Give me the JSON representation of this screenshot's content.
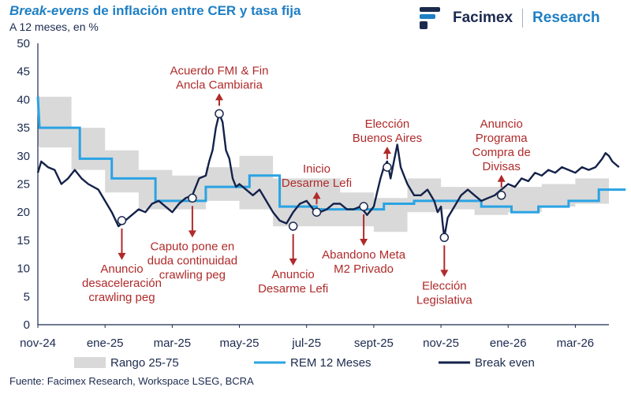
{
  "header": {
    "title_italic": "Break-evens",
    "title_rest": " de inflación entre CER y tasa fija",
    "subtitle": "A 12 meses, en %"
  },
  "logo": {
    "name": "Facimex",
    "research": "Research"
  },
  "source": "Fuente: Facimex Research, Workspace LSEG, BCRA",
  "colors": {
    "band": "#d9d9d9",
    "rem": "#2aa3e3",
    "break_even": "#14224a",
    "annotation": "#b02a2a",
    "axis": "#1b2a4e"
  },
  "chart_data": {
    "type": "line",
    "title": "Break-evens de inflación entre CER y tasa fija",
    "subtitle": "A 12 meses, en %",
    "xlabel": "",
    "ylabel": "",
    "ylim": [
      0,
      50
    ],
    "xlim": [
      0,
      17
    ],
    "x_unit": "months since 1-nov-2024",
    "y_ticks": [
      "0",
      "5",
      "10",
      "15",
      "20",
      "25",
      "30",
      "35",
      "40",
      "45",
      "50"
    ],
    "x_ticks": [
      {
        "x": 0,
        "label": "nov-24"
      },
      {
        "x": 2,
        "label": "ene-25"
      },
      {
        "x": 4,
        "label": "mar-25"
      },
      {
        "x": 6,
        "label": "may-25"
      },
      {
        "x": 8,
        "label": "jul-25"
      },
      {
        "x": 10,
        "label": "sept-25"
      },
      {
        "x": 12,
        "label": "nov-25"
      },
      {
        "x": 14,
        "label": "ene-26"
      },
      {
        "x": 16,
        "label": "mar-26"
      }
    ],
    "legend": [
      "Rango 25-75",
      "REM 12 Meses",
      "Break even"
    ],
    "legend_position": "bottom",
    "series": [
      {
        "name": "Rango 25-75",
        "kind": "band",
        "x": [
          0,
          0.05,
          1.0,
          1.0,
          2.0,
          2.0,
          3.0,
          3.0,
          4.0,
          4.0,
          5.0,
          5.0,
          6.0,
          6.0,
          7.0,
          7.0,
          8.0,
          8.0,
          9.0,
          9.0,
          10.0,
          10.0,
          11.0,
          11.0,
          12.0,
          12.0,
          13.0,
          13.0,
          14.0,
          14.0,
          15.0,
          15.0,
          16.0,
          16.0,
          17.0
        ],
        "upper": [
          41,
          40.5,
          40.5,
          35,
          35,
          31,
          31,
          27.5,
          27.5,
          26.5,
          26.5,
          28,
          28,
          30,
          30,
          26,
          26,
          26,
          26,
          23.5,
          23.5,
          22.5,
          22.5,
          26,
          26,
          24.5,
          24.5,
          24.5,
          24.5,
          24.5,
          24.5,
          25,
          25,
          26,
          26
        ],
        "lower": [
          32,
          31.5,
          31.5,
          27.5,
          27.5,
          23.5,
          23.5,
          20.5,
          20.5,
          20.5,
          20.5,
          22,
          22,
          20.5,
          20.5,
          17.5,
          17.5,
          17.5,
          17.5,
          17.5,
          17.5,
          16.5,
          16.5,
          20,
          20,
          20.5,
          20.5,
          19.5,
          19.5,
          20,
          20,
          21,
          21,
          21.5,
          21.5
        ]
      },
      {
        "name": "REM 12 Meses",
        "kind": "step",
        "x": [
          0,
          0.05,
          1.25,
          1.25,
          2.2,
          2.2,
          3.5,
          3.5,
          5.0,
          5.0,
          6.3,
          6.3,
          7.2,
          7.2,
          8.3,
          8.3,
          10.3,
          10.3,
          11.2,
          11.2,
          13.2,
          13.2,
          14.1,
          14.1,
          14.9,
          14.9,
          15.8,
          15.8,
          16.7,
          16.7,
          17.5
        ],
        "y": [
          40.5,
          35,
          35,
          29.5,
          29.5,
          26,
          26,
          22,
          22,
          24.5,
          24.5,
          26.5,
          26.5,
          21,
          21,
          20.5,
          20.5,
          21.5,
          21.5,
          22,
          22,
          21,
          21,
          20,
          20,
          21,
          21,
          22,
          22,
          24,
          24
        ]
      },
      {
        "name": "Break even",
        "kind": "line",
        "x": [
          0,
          0.1,
          0.3,
          0.5,
          0.7,
          0.9,
          1.1,
          1.3,
          1.5,
          1.8,
          2.0,
          2.2,
          2.4,
          2.6,
          2.8,
          3.0,
          3.2,
          3.4,
          3.6,
          3.8,
          4.0,
          4.2,
          4.4,
          4.6,
          4.8,
          5.0,
          5.1,
          5.2,
          5.3,
          5.4,
          5.5,
          5.6,
          5.7,
          5.8,
          5.9,
          6.0,
          6.2,
          6.4,
          6.6,
          6.8,
          7.0,
          7.2,
          7.4,
          7.6,
          7.8,
          8.0,
          8.2,
          8.4,
          8.6,
          8.8,
          9.0,
          9.2,
          9.4,
          9.6,
          9.8,
          10.0,
          10.1,
          10.2,
          10.3,
          10.4,
          10.5,
          10.6,
          10.7,
          10.8,
          10.9,
          11.0,
          11.2,
          11.4,
          11.6,
          11.8,
          11.9,
          12.0,
          12.05,
          12.1,
          12.2,
          12.4,
          12.6,
          12.8,
          13.0,
          13.2,
          13.4,
          13.6,
          13.8,
          14.0,
          14.2,
          14.4,
          14.6,
          14.8,
          15.0,
          15.2,
          15.4,
          15.6,
          15.8,
          16.0,
          16.2,
          16.4,
          16.6,
          16.8,
          16.9,
          17.0,
          17.1,
          17.2,
          17.3
        ],
        "y": [
          27,
          29,
          28,
          27.5,
          25,
          26,
          27.5,
          26,
          25,
          24,
          22,
          20,
          17.5,
          18.5,
          19.5,
          20.5,
          20,
          21.5,
          22,
          21,
          20,
          21.5,
          22.5,
          23,
          26,
          26.5,
          29,
          31,
          35,
          37.5,
          36,
          31,
          29.5,
          26,
          24.5,
          25,
          24,
          23,
          24,
          22,
          20,
          18.5,
          18,
          20,
          21.5,
          22,
          20.5,
          20,
          20.5,
          21.5,
          21.5,
          20.5,
          20.5,
          21,
          19.5,
          21,
          23.5,
          26,
          28,
          29,
          26,
          29,
          32,
          28,
          26.5,
          25,
          23,
          23,
          24,
          22,
          20,
          21,
          18,
          15.5,
          19,
          21,
          23,
          24,
          23,
          22,
          22.5,
          23,
          24,
          25,
          24.5,
          26,
          25.5,
          27,
          26.5,
          27.5,
          27,
          28,
          27.5,
          27,
          28,
          27.5,
          28,
          29.5,
          30.5,
          30,
          29,
          28.5,
          28
        ]
      }
    ],
    "annotations": [
      {
        "lines": [
          "Acuerdo FMI & Fin",
          "Ancla Cambiaria"
        ],
        "x": 5.4,
        "y": 37.5,
        "direction": "up"
      },
      {
        "lines": [
          "Caputo pone en",
          "duda continuidad",
          "crawling peg"
        ],
        "x": 4.6,
        "y": 22.5,
        "direction": "down"
      },
      {
        "lines": [
          "Anuncio",
          "desaceleración",
          "crawling peg"
        ],
        "x": 2.5,
        "y": 18.5,
        "direction": "down"
      },
      {
        "lines": [
          "Inicio",
          "Desarme Lefi"
        ],
        "x": 8.3,
        "y": 20,
        "direction": "up"
      },
      {
        "lines": [
          "Anuncio",
          "Desarme Lefi"
        ],
        "x": 7.6,
        "y": 17.5,
        "direction": "down"
      },
      {
        "lines": [
          "Abandono Meta",
          "M2 Privado"
        ],
        "x": 9.7,
        "y": 21,
        "direction": "down"
      },
      {
        "lines": [
          "Elección",
          "Buenos Aires"
        ],
        "x": 10.4,
        "y": 28,
        "direction": "up"
      },
      {
        "lines": [
          "Elección",
          "Legislativa"
        ],
        "x": 12.1,
        "y": 15.5,
        "direction": "down"
      },
      {
        "lines": [
          "Anuncio",
          "Programa",
          "Compra de",
          "Divisas"
        ],
        "x": 13.8,
        "y": 23,
        "direction": "up"
      }
    ]
  }
}
